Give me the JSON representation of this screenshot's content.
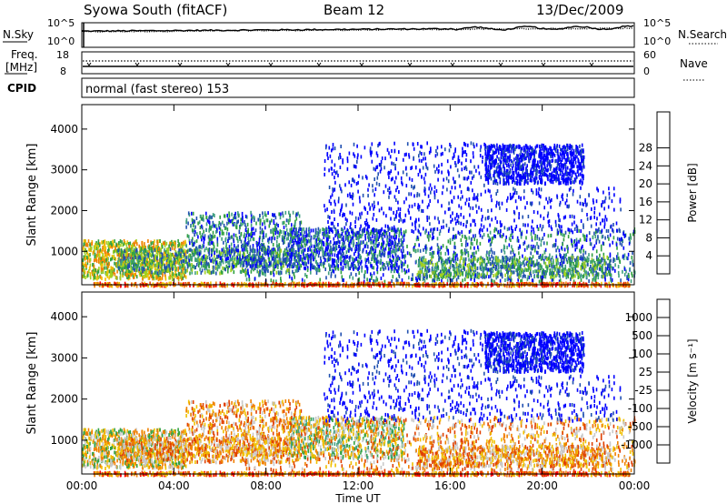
{
  "header": {
    "station": "Syowa South (fitACF)",
    "beam": "Beam 12",
    "date": "13/Dec/2009"
  },
  "top_panels": {
    "nsky_label": "N.Sky",
    "nsearch_label": "N.Search",
    "freq_label_1": "Freq.",
    "freq_label_2": "[MHz]",
    "nave_label": "Nave",
    "cpid_label": "CPID",
    "cpid_text": "normal (fast stereo) 153",
    "noise_ticks_left": [
      "10^5",
      "10^0"
    ],
    "noise_ticks_right": [
      "10^5",
      "10^0"
    ],
    "freq_ticks_left": [
      "18",
      "8"
    ],
    "nave_ticks_right": [
      "60",
      "0"
    ]
  },
  "colors": {
    "power": [
      "#0000ff",
      "#2050b0",
      "#40a080",
      "#30a040",
      "#a0d020",
      "#f0c000",
      "#f08000",
      "#e04000",
      "#ff0000"
    ],
    "velocity": [
      "#0000ff",
      "#2050b0",
      "#40a080",
      "#30a040",
      "#c8c8c8",
      "#f0c000",
      "#f08000",
      "#e04000",
      "#ff0000"
    ]
  },
  "chart_data": [
    {
      "type": "heatmap",
      "title": "Power",
      "ylabel": "Slant Range [km]",
      "ylim": [
        180,
        4600
      ],
      "yticks": [
        "1000",
        "2000",
        "3000",
        "4000"
      ],
      "colorbar_label": "Power [dB]",
      "colorbar_ticks": [
        "4",
        "8",
        "12",
        "16",
        "20",
        "24",
        "28"
      ],
      "colorbar_range": [
        0,
        32
      ]
    },
    {
      "type": "heatmap",
      "title": "Velocity",
      "ylabel": "Slant Range [km]",
      "ylim": [
        180,
        4600
      ],
      "yticks": [
        "1000",
        "2000",
        "3000",
        "4000"
      ],
      "xlabel": "Time UT",
      "xticks": [
        "00:00",
        "04:00",
        "08:00",
        "12:00",
        "16:00",
        "20:00",
        "00:00"
      ],
      "xlim_hours": [
        0,
        24
      ],
      "colorbar_label": "Velocity [m s⁻¹]",
      "colorbar_ticks": [
        "1000",
        "500",
        "100",
        "25",
        "-25",
        "-100",
        "-500",
        "-1000"
      ]
    }
  ]
}
